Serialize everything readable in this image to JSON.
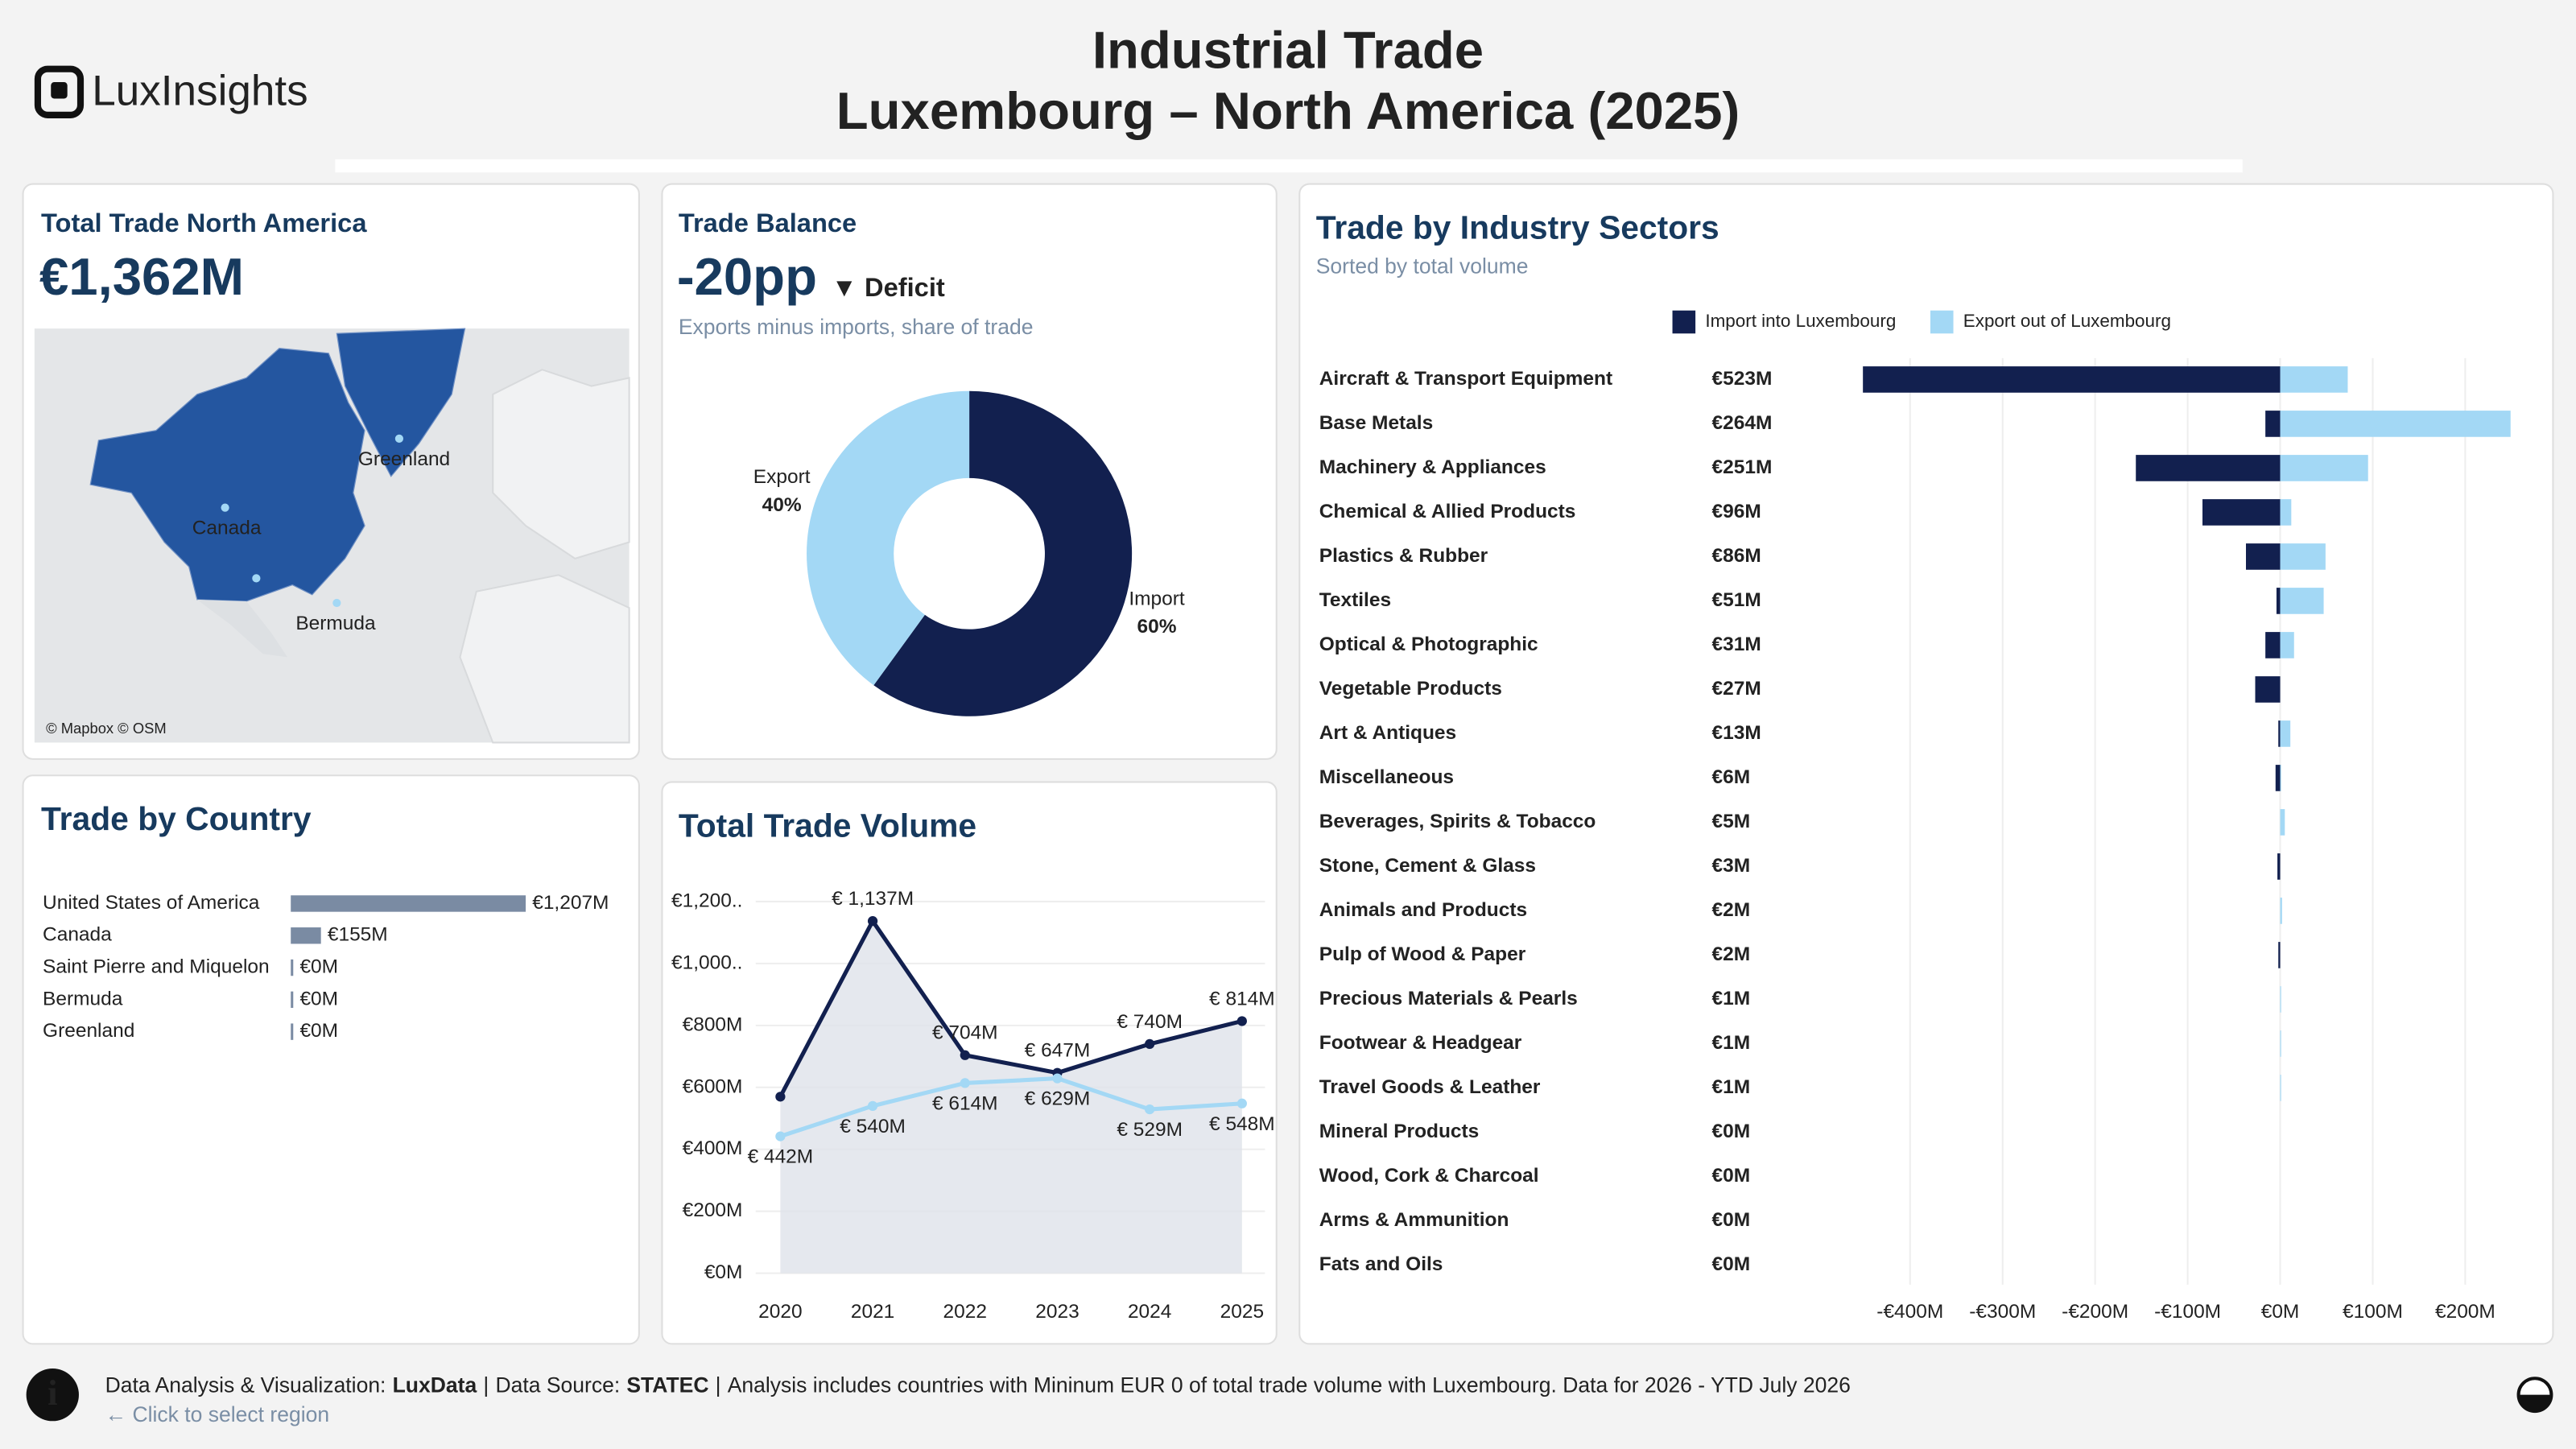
{
  "header": {
    "logo": "LuxInsights",
    "title_line1": "Industrial Trade",
    "title_line2": "Luxembourg – North America (2025)"
  },
  "kpis": [
    {
      "title": "Total Trade North America",
      "value": "€1,362M"
    },
    {
      "title": "Trade Balance",
      "value": "-20pp",
      "indicator": "▼ Deficit",
      "subtitle": "Exports minus imports, share of trade"
    }
  ],
  "map": {
    "labels": [
      "Canada",
      "Greenland",
      "Bermuda"
    ],
    "attribution": "© Mapbox © OSM"
  },
  "chart_data": [
    {
      "type": "pie",
      "categories": [
        "Import",
        "Export"
      ],
      "values": [
        60,
        40
      ],
      "value_labels": [
        "60%",
        "40%"
      ],
      "colors": [
        "#12204f",
        "#a3d8f5"
      ]
    },
    {
      "type": "bar",
      "title": "Trade by Country",
      "categories": [
        "United States of America",
        "Canada",
        "Saint Pierre and Miquelon",
        "Bermuda",
        "Greenland"
      ],
      "values": [
        1207,
        155,
        0,
        0,
        0
      ],
      "value_labels": [
        "€1,207M",
        "€155M",
        "€0M",
        "€0M",
        "€0M"
      ],
      "color": "#7a8ba3"
    },
    {
      "type": "line",
      "title": "Total Trade Volume",
      "x": [
        2020,
        2021,
        2022,
        2023,
        2024,
        2025
      ],
      "xlim": [
        2020,
        2025
      ],
      "xticks": [
        2020,
        2021,
        2022,
        2023,
        2024,
        2025
      ],
      "ylim": [
        0,
        1220
      ],
      "yticks": [
        {
          "value": 0,
          "label": "€0M"
        },
        {
          "value": 200,
          "label": "€200M"
        },
        {
          "value": 400,
          "label": "€400M"
        },
        {
          "value": 600,
          "label": "€600M"
        },
        {
          "value": 800,
          "label": "€800M"
        },
        {
          "value": 1000,
          "label": "€1,000.."
        },
        {
          "value": 1200,
          "label": "€1,200.."
        }
      ],
      "grid": true,
      "series": [
        {
          "color": "#12204f",
          "values": [
            570,
            1137,
            704,
            647,
            740,
            814
          ],
          "value_labels": [
            null,
            "€ 1,137M",
            "€ 704M",
            "€ 647M",
            "€ 740M",
            "€ 814M"
          ]
        },
        {
          "color": "#a3d8f5",
          "values": [
            442,
            540,
            614,
            629,
            529,
            548
          ],
          "value_labels": [
            "€ 442M",
            "€ 540M",
            "€ 614M",
            "€ 629M",
            "€ 529M",
            "€ 548M"
          ]
        }
      ]
    },
    {
      "type": "bar",
      "title": "Trade by Industry Sectors",
      "subtitle": "Sorted by total volume",
      "categories": [
        "Aircraft & Transport Equipment",
        "Base Metals",
        "Machinery & Appliances",
        "Chemical & Allied Products",
        "Plastics & Rubber",
        "Textiles",
        "Optical & Photographic",
        "Vegetable Products",
        "Art & Antiques",
        "Miscellaneous",
        "Beverages, Spirits & Tobacco",
        "Stone, Cement & Glass",
        "Animals and Products",
        "Pulp of Wood & Paper",
        "Precious Materials & Pearls",
        "Footwear & Headgear",
        "Travel Goods & Leather",
        "Mineral Products",
        "Wood, Cork & Charcoal",
        "Arms & Ammunition",
        "Fats and Oils"
      ],
      "total_labels": [
        "€523M",
        "€264M",
        "€251M",
        "€96M",
        "€86M",
        "€51M",
        "€31M",
        "€27M",
        "€13M",
        "€6M",
        "€5M",
        "€3M",
        "€2M",
        "€2M",
        "€1M",
        "€1M",
        "€1M",
        "€0M",
        "€0M",
        "€0M",
        "€0M"
      ],
      "series": [
        {
          "name": "Import into Luxembourg",
          "color": "#12204f",
          "values": [
            -451,
            -16,
            -156,
            -84,
            -37,
            -4,
            -16,
            -27,
            -2,
            -5,
            0,
            -3,
            0,
            -2,
            0,
            0,
            0,
            0,
            0,
            0,
            0
          ]
        },
        {
          "name": "Export out of Luxembourg",
          "color": "#a3d8f5",
          "values": [
            73,
            249,
            95,
            12,
            49,
            47,
            15,
            0,
            11,
            1,
            5,
            0,
            2,
            0,
            1,
            1,
            1,
            0,
            0,
            0,
            0
          ]
        }
      ],
      "xlim": [
        -458,
        270
      ],
      "xticks": [
        {
          "value": -400,
          "label": "-€400M"
        },
        {
          "value": -300,
          "label": "-€300M"
        },
        {
          "value": -200,
          "label": "-€200M"
        },
        {
          "value": -100,
          "label": "-€100M"
        },
        {
          "value": 0,
          "label": "€0M"
        },
        {
          "value": 100,
          "label": "€100M"
        },
        {
          "value": 200,
          "label": "€200M"
        }
      ],
      "grid": true
    }
  ],
  "footer": {
    "credit_label": "Data Analysis & Visualization:",
    "credit": "LuxData",
    "separator": "|",
    "source_label": "Data Source:",
    "source": "STATEC",
    "note": "Analysis includes countries with Mininum EUR 0 of total trade volume with Luxembourg. Data for 2026 - YTD July 2026",
    "hint": "← Click to select region"
  }
}
